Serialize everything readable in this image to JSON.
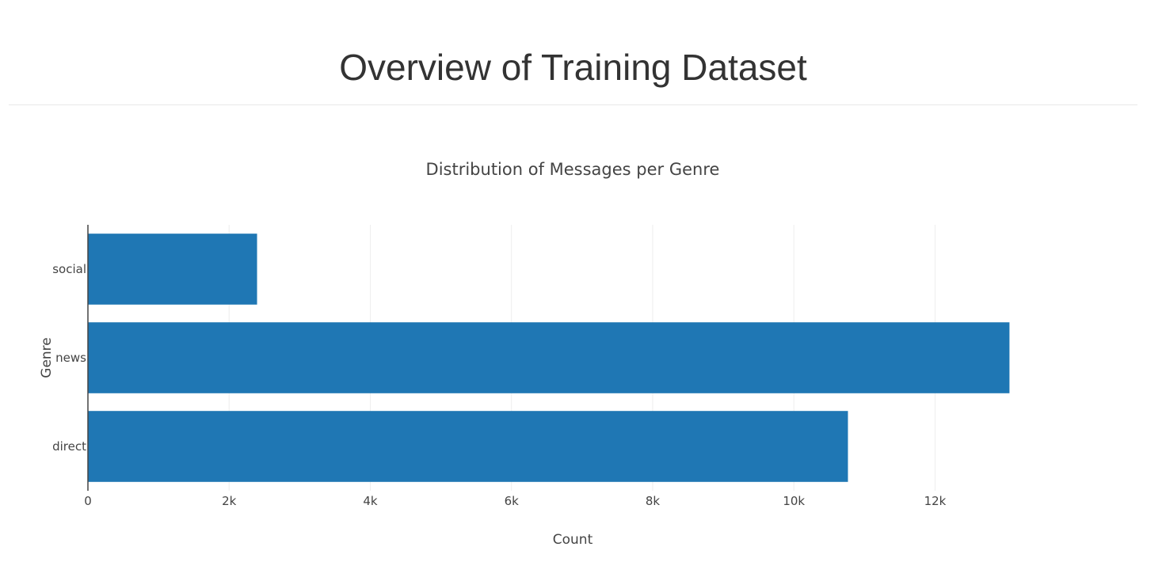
{
  "page": {
    "title": "Overview of Training Dataset"
  },
  "chart_data": {
    "type": "bar",
    "orientation": "horizontal",
    "title": "Distribution of Messages per Genre",
    "xlabel": "Count",
    "ylabel": "Genre",
    "categories": [
      "direct",
      "news",
      "social"
    ],
    "values": [
      10766,
      13054,
      2396
    ],
    "xlim": [
      0,
      13700
    ],
    "xticks": [
      0,
      2000,
      4000,
      6000,
      8000,
      10000,
      12000
    ],
    "xtick_labels": [
      "0",
      "2k",
      "4k",
      "6k",
      "8k",
      "10k",
      "12k"
    ],
    "grid": true,
    "legend": "none",
    "colors": {
      "bar": "#1f77b4",
      "grid": "#eeeeee",
      "axis_line": "#444444",
      "text": "#444444"
    }
  }
}
